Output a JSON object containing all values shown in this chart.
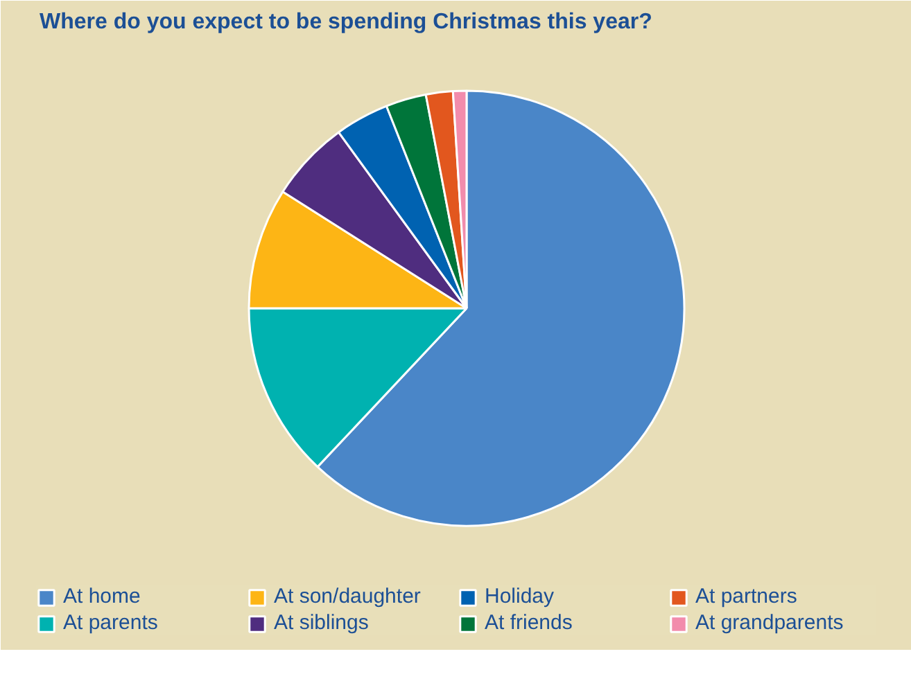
{
  "chart_data": {
    "type": "pie",
    "title": "Where do you expect to be spending Christmas this year?",
    "categories": [
      "At home",
      "At parents",
      "At son/daughter",
      "At siblings",
      "Holiday",
      "At friends",
      "At partners",
      "At grandparents"
    ],
    "values": [
      62,
      13,
      9,
      6,
      4,
      3,
      2,
      1
    ],
    "colors": [
      "#4a86c8",
      "#00b2b0",
      "#fdb515",
      "#4f2d7f",
      "#0062b1",
      "#00753a",
      "#e2571e",
      "#f28cac"
    ],
    "legend": "bottom"
  }
}
